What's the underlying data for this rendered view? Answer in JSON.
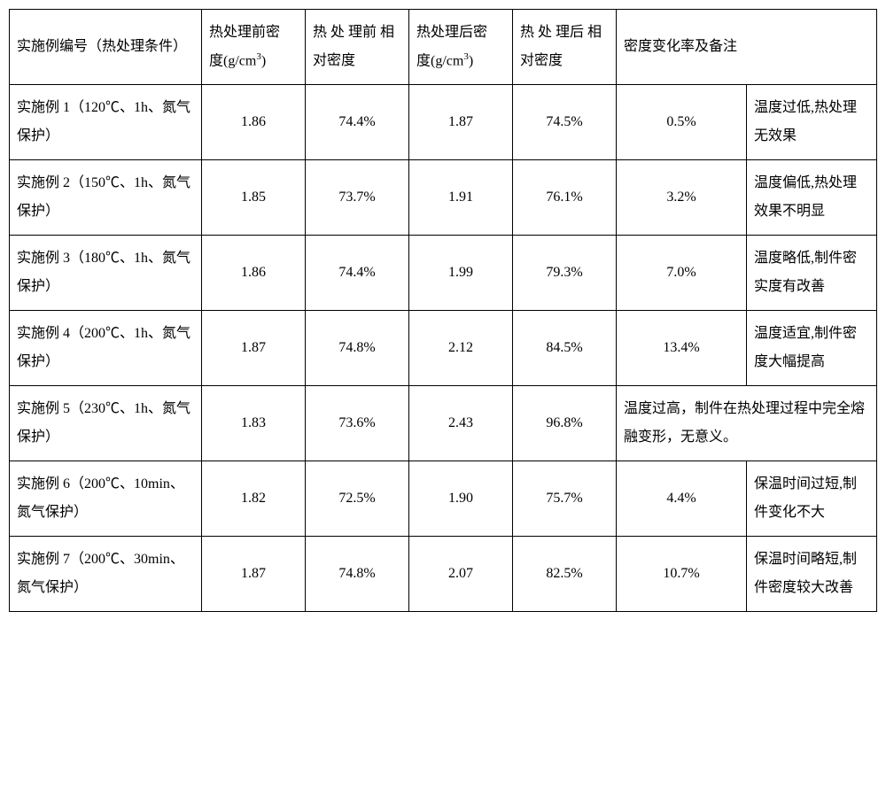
{
  "table": {
    "headers": {
      "c0": "实施例编号（热处理条件）",
      "c1_html": "热处理前密　　度(g/cm<sup>3</sup>)",
      "c2": "热 处 理前 相 对密度",
      "c3_html": "热处理后密　　度(g/cm<sup>3</sup>)",
      "c4": "热 处 理后 相 对密度",
      "c5merged": "密度变化率及备注"
    },
    "rows": [
      {
        "c0": "实施例 1（120℃、1h、氮气保护）",
        "c1": "1.86",
        "c2": "74.4%",
        "c3": "1.87",
        "c4": "74.5%",
        "c5": "0.5%",
        "c6": "温度过低,热处理无效果",
        "merged56": false
      },
      {
        "c0": "实施例 2（150℃、1h、氮气保护）",
        "c1": "1.85",
        "c2": "73.7%",
        "c3": "1.91",
        "c4": "76.1%",
        "c5": "3.2%",
        "c6": "温度偏低,热处理效果不明显",
        "merged56": false
      },
      {
        "c0": "实施例 3（180℃、1h、氮气保护）",
        "c1": "1.86",
        "c2": "74.4%",
        "c3": "1.99",
        "c4": "79.3%",
        "c5": "7.0%",
        "c6": "温度略低,制件密实度有改善",
        "merged56": false
      },
      {
        "c0": "实施例 4（200℃、1h、氮气保护）",
        "c1": "1.87",
        "c2": "74.8%",
        "c3": "2.12",
        "c4": "84.5%",
        "c5": "13.4%",
        "c6": "温度适宜,制件密度大幅提高",
        "merged56": false
      },
      {
        "c0": "实施例 5（230℃、1h、氮气保护）",
        "c1": "1.83",
        "c2": "73.6%",
        "c3": "2.43",
        "c4": "96.8%",
        "c5merged": "温度过高，制件在热处理过程中完全熔融变形，无意义。",
        "merged56": true
      },
      {
        "c0": "实施例 6（200℃、10min、氮气保护）",
        "c1": "1.82",
        "c2": "72.5%",
        "c3": "1.90",
        "c4": "75.7%",
        "c5": "4.4%",
        "c6": "保温时间过短,制件变化不大",
        "merged56": false
      },
      {
        "c0": "实施例 7（200℃、30min、氮气保护）",
        "c1": "1.87",
        "c2": "74.8%",
        "c3": "2.07",
        "c4": "82.5%",
        "c5": "10.7%",
        "c6": "保温时间略短,制件密度较大改善",
        "merged56": false
      }
    ]
  },
  "colors": {
    "border": "#000000",
    "text": "#000000",
    "background": "#ffffff"
  }
}
